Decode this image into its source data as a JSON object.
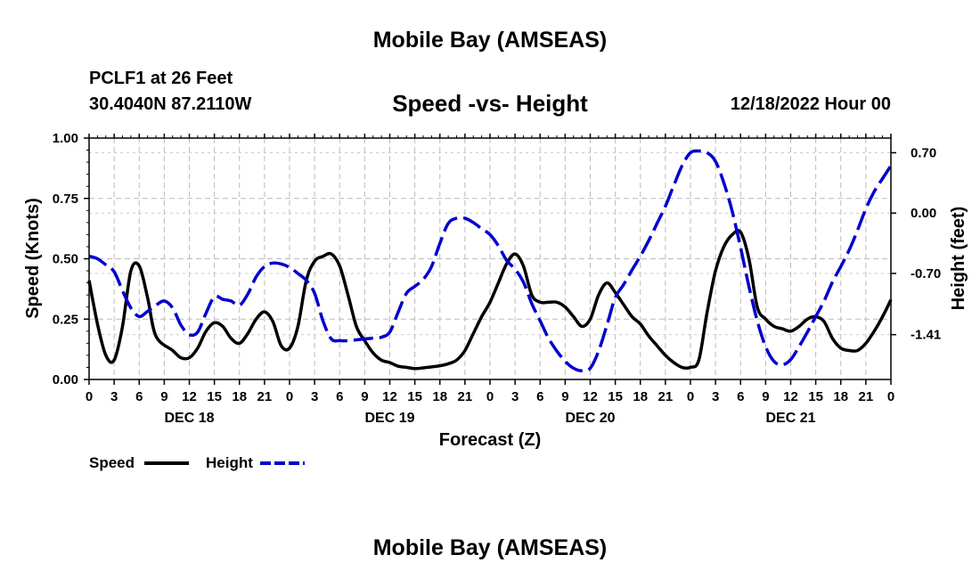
{
  "chart_data": {
    "type": "line",
    "title": "Mobile Bay (AMSEAS)",
    "subtitle": "Speed -vs- Height",
    "station": "PCLF1 at 26 Feet",
    "coords": "30.4040N  87.2110W",
    "timestamp": "12/18/2022 Hour 00",
    "footer_title": "Mobile Bay (AMSEAS)",
    "xlabel": "Forecast (Z)",
    "ylabel_left": "Speed (Knots)",
    "ylabel_right": "Height (feet)",
    "x_range_hours": [
      0,
      96
    ],
    "x_ticks": [
      {
        "h": 0,
        "label": "0"
      },
      {
        "h": 3,
        "label": "3"
      },
      {
        "h": 6,
        "label": "6"
      },
      {
        "h": 9,
        "label": "9"
      },
      {
        "h": 12,
        "label": "12"
      },
      {
        "h": 15,
        "label": "15"
      },
      {
        "h": 18,
        "label": "18"
      },
      {
        "h": 21,
        "label": "21"
      },
      {
        "h": 24,
        "label": "0"
      },
      {
        "h": 27,
        "label": "3"
      },
      {
        "h": 30,
        "label": "6"
      },
      {
        "h": 33,
        "label": "9"
      },
      {
        "h": 36,
        "label": "12"
      },
      {
        "h": 39,
        "label": "15"
      },
      {
        "h": 42,
        "label": "18"
      },
      {
        "h": 45,
        "label": "21"
      },
      {
        "h": 48,
        "label": "0"
      },
      {
        "h": 51,
        "label": "3"
      },
      {
        "h": 54,
        "label": "6"
      },
      {
        "h": 57,
        "label": "9"
      },
      {
        "h": 60,
        "label": "12"
      },
      {
        "h": 63,
        "label": "15"
      },
      {
        "h": 66,
        "label": "18"
      },
      {
        "h": 69,
        "label": "21"
      },
      {
        "h": 72,
        "label": "0"
      },
      {
        "h": 75,
        "label": "3"
      },
      {
        "h": 78,
        "label": "6"
      },
      {
        "h": 81,
        "label": "9"
      },
      {
        "h": 84,
        "label": "12"
      },
      {
        "h": 87,
        "label": "15"
      },
      {
        "h": 90,
        "label": "18"
      },
      {
        "h": 93,
        "label": "21"
      },
      {
        "h": 96,
        "label": "0"
      }
    ],
    "day_labels": [
      {
        "h": 12,
        "label": "DEC 18"
      },
      {
        "h": 36,
        "label": "DEC 19"
      },
      {
        "h": 60,
        "label": "DEC 20"
      },
      {
        "h": 84,
        "label": "DEC 21"
      }
    ],
    "y_left": {
      "min": 0,
      "max": 1.0,
      "ticks": [
        0.0,
        0.25,
        0.5,
        0.75,
        1.0
      ],
      "tick_labels": [
        "0.00",
        "0.25",
        "0.50",
        "0.75",
        "1.00"
      ]
    },
    "y_right": {
      "min": -1.93,
      "max": 0.87,
      "ticks": [
        0.7,
        0.0,
        -0.7,
        -1.41
      ],
      "tick_labels": [
        "0.70",
        "0.00",
        "-0.70",
        "-1.41"
      ]
    },
    "grid": true,
    "series": [
      {
        "name": "Speed",
        "axis": "left",
        "color": "#000000",
        "style": "solid",
        "points": [
          [
            0,
            0.41
          ],
          [
            1,
            0.23
          ],
          [
            2,
            0.1
          ],
          [
            3,
            0.08
          ],
          [
            4,
            0.22
          ],
          [
            5,
            0.45
          ],
          [
            6,
            0.47
          ],
          [
            7,
            0.34
          ],
          [
            8,
            0.18
          ],
          [
            10,
            0.12
          ],
          [
            11,
            0.09
          ],
          [
            12,
            0.09
          ],
          [
            13,
            0.13
          ],
          [
            14,
            0.2
          ],
          [
            15,
            0.235
          ],
          [
            16,
            0.22
          ],
          [
            17,
            0.17
          ],
          [
            18,
            0.15
          ],
          [
            19,
            0.19
          ],
          [
            20,
            0.25
          ],
          [
            21,
            0.28
          ],
          [
            22,
            0.24
          ],
          [
            23,
            0.14
          ],
          [
            24,
            0.13
          ],
          [
            25,
            0.22
          ],
          [
            26,
            0.41
          ],
          [
            27,
            0.49
          ],
          [
            28,
            0.51
          ],
          [
            29,
            0.52
          ],
          [
            30,
            0.47
          ],
          [
            31,
            0.35
          ],
          [
            32,
            0.22
          ],
          [
            33,
            0.16
          ],
          [
            34,
            0.11
          ],
          [
            35,
            0.08
          ],
          [
            36,
            0.07
          ],
          [
            37,
            0.055
          ],
          [
            38,
            0.05
          ],
          [
            39,
            0.045
          ],
          [
            40,
            0.048
          ],
          [
            41,
            0.052
          ],
          [
            42,
            0.057
          ],
          [
            43,
            0.065
          ],
          [
            44,
            0.08
          ],
          [
            45,
            0.12
          ],
          [
            46,
            0.19
          ],
          [
            47,
            0.26
          ],
          [
            48,
            0.32
          ],
          [
            49,
            0.4
          ],
          [
            50,
            0.48
          ],
          [
            51,
            0.52
          ],
          [
            52,
            0.47
          ],
          [
            53,
            0.35
          ],
          [
            54,
            0.32
          ],
          [
            55,
            0.32
          ],
          [
            56,
            0.32
          ],
          [
            57,
            0.3
          ],
          [
            58,
            0.26
          ],
          [
            59,
            0.22
          ],
          [
            60,
            0.25
          ],
          [
            61,
            0.35
          ],
          [
            62,
            0.4
          ],
          [
            63,
            0.36
          ],
          [
            64,
            0.31
          ],
          [
            65,
            0.26
          ],
          [
            66,
            0.23
          ],
          [
            67,
            0.18
          ],
          [
            68,
            0.14
          ],
          [
            69,
            0.1
          ],
          [
            70,
            0.07
          ],
          [
            71,
            0.05
          ],
          [
            72,
            0.05
          ],
          [
            73,
            0.08
          ],
          [
            74,
            0.28
          ],
          [
            75,
            0.45
          ],
          [
            76,
            0.55
          ],
          [
            77,
            0.6
          ],
          [
            78,
            0.61
          ],
          [
            79,
            0.5
          ],
          [
            80,
            0.3
          ],
          [
            81,
            0.25
          ],
          [
            82,
            0.22
          ],
          [
            83,
            0.21
          ],
          [
            84,
            0.2
          ],
          [
            85,
            0.22
          ],
          [
            86,
            0.25
          ],
          [
            87,
            0.26
          ],
          [
            88,
            0.24
          ],
          [
            89,
            0.17
          ],
          [
            90,
            0.13
          ],
          [
            91,
            0.12
          ],
          [
            92,
            0.12
          ],
          [
            93,
            0.15
          ],
          [
            94,
            0.2
          ],
          [
            95,
            0.26
          ],
          [
            96,
            0.33
          ]
        ]
      },
      {
        "name": "Height",
        "axis": "right",
        "color": "#0000cc",
        "style": "dashed",
        "points": [
          [
            0,
            -0.5
          ],
          [
            1,
            -0.53
          ],
          [
            2,
            -0.6
          ],
          [
            3,
            -0.68
          ],
          [
            4,
            -0.9
          ],
          [
            5,
            -1.1
          ],
          [
            6,
            -1.2
          ],
          [
            7,
            -1.14
          ],
          [
            8,
            -1.07
          ],
          [
            9,
            -1.02
          ],
          [
            10,
            -1.1
          ],
          [
            11,
            -1.3
          ],
          [
            12,
            -1.41
          ],
          [
            13,
            -1.38
          ],
          [
            14,
            -1.16
          ],
          [
            15,
            -0.97
          ],
          [
            16,
            -1.0
          ],
          [
            17,
            -1.02
          ],
          [
            18,
            -1.07
          ],
          [
            19,
            -0.94
          ],
          [
            20,
            -0.74
          ],
          [
            21,
            -0.62
          ],
          [
            22,
            -0.58
          ],
          [
            23,
            -0.59
          ],
          [
            24,
            -0.63
          ],
          [
            25,
            -0.7
          ],
          [
            26,
            -0.78
          ],
          [
            27,
            -0.93
          ],
          [
            28,
            -1.25
          ],
          [
            29,
            -1.46
          ],
          [
            30,
            -1.48
          ],
          [
            31,
            -1.48
          ],
          [
            32,
            -1.47
          ],
          [
            33,
            -1.46
          ],
          [
            34,
            -1.45
          ],
          [
            35,
            -1.44
          ],
          [
            36,
            -1.38
          ],
          [
            37,
            -1.15
          ],
          [
            38,
            -0.93
          ],
          [
            39,
            -0.85
          ],
          [
            40,
            -0.77
          ],
          [
            41,
            -0.62
          ],
          [
            42,
            -0.35
          ],
          [
            43,
            -0.12
          ],
          [
            44,
            -0.06
          ],
          [
            45,
            -0.06
          ],
          [
            46,
            -0.11
          ],
          [
            47,
            -0.18
          ],
          [
            48,
            -0.25
          ],
          [
            49,
            -0.38
          ],
          [
            50,
            -0.55
          ],
          [
            51,
            -0.65
          ],
          [
            52,
            -0.8
          ],
          [
            53,
            -1.05
          ],
          [
            54,
            -1.25
          ],
          [
            55,
            -1.45
          ],
          [
            56,
            -1.6
          ],
          [
            57,
            -1.72
          ],
          [
            58,
            -1.8
          ],
          [
            59,
            -1.83
          ],
          [
            60,
            -1.8
          ],
          [
            61,
            -1.6
          ],
          [
            62,
            -1.3
          ],
          [
            63,
            -0.98
          ],
          [
            64,
            -0.83
          ],
          [
            65,
            -0.66
          ],
          [
            66,
            -0.5
          ],
          [
            67,
            -0.32
          ],
          [
            68,
            -0.12
          ],
          [
            69,
            0.08
          ],
          [
            70,
            0.32
          ],
          [
            71,
            0.55
          ],
          [
            72,
            0.7
          ],
          [
            73,
            0.72
          ],
          [
            74,
            0.7
          ],
          [
            75,
            0.6
          ],
          [
            76,
            0.35
          ],
          [
            77,
            0.02
          ],
          [
            78,
            -0.4
          ],
          [
            79,
            -0.85
          ],
          [
            80,
            -1.25
          ],
          [
            81,
            -1.55
          ],
          [
            82,
            -1.72
          ],
          [
            83,
            -1.76
          ],
          [
            84,
            -1.7
          ],
          [
            85,
            -1.55
          ],
          [
            86,
            -1.38
          ],
          [
            87,
            -1.2
          ],
          [
            88,
            -1.02
          ],
          [
            89,
            -0.8
          ],
          [
            90,
            -0.62
          ],
          [
            91,
            -0.43
          ],
          [
            92,
            -0.2
          ],
          [
            93,
            0.05
          ],
          [
            94,
            0.25
          ],
          [
            95,
            0.4
          ],
          [
            96,
            0.55
          ]
        ]
      }
    ],
    "legend": [
      {
        "name": "Speed",
        "color": "#000000",
        "style": "solid"
      },
      {
        "name": "Height",
        "color": "#0000cc",
        "style": "dashed"
      }
    ]
  }
}
